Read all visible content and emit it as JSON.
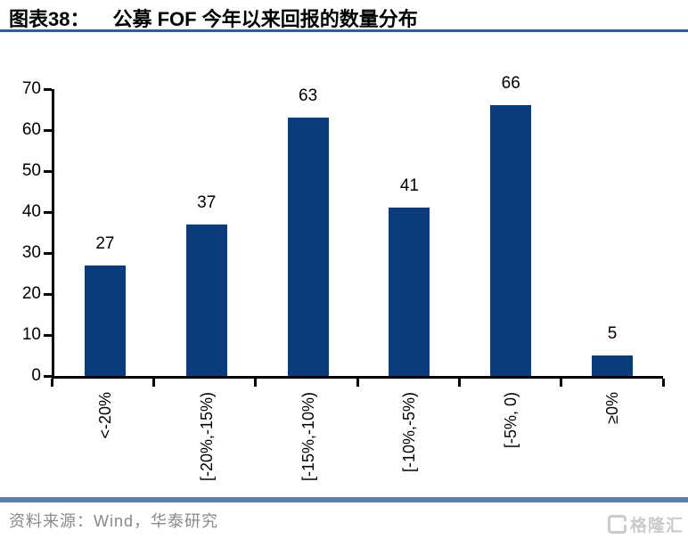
{
  "header": {
    "label": "图表38：",
    "title": "公募 FOF 今年以来回报的数量分布"
  },
  "chart_data": {
    "type": "bar",
    "title": "公募 FOF 今年以来回报的数量分布",
    "categories": [
      "<-20%",
      "[-20%,-15%)",
      "[-15%,-10%)",
      "[-10%,-5%)",
      "[-5%, 0)",
      "≥0%"
    ],
    "values": [
      27,
      37,
      63,
      41,
      66,
      5
    ],
    "xlabel": "",
    "ylabel": "",
    "ylim": [
      0,
      70
    ],
    "yticks": [
      0,
      10,
      20,
      30,
      40,
      50,
      60,
      70
    ],
    "bar_color": "#0a3b7d",
    "grid": false,
    "legend": false,
    "data_labels": true,
    "x_labels_rotated_degrees": 90
  },
  "footer": {
    "source": "资料来源：Wind，华泰研究",
    "logo_text": "格隆汇"
  },
  "colors": {
    "bar": "#0a3b7d",
    "title_underline": "#2e5c9e",
    "divider": "#5d80ab",
    "source_text": "#8a8a8a",
    "logo": "#cbcbcb",
    "axis": "#000000"
  }
}
